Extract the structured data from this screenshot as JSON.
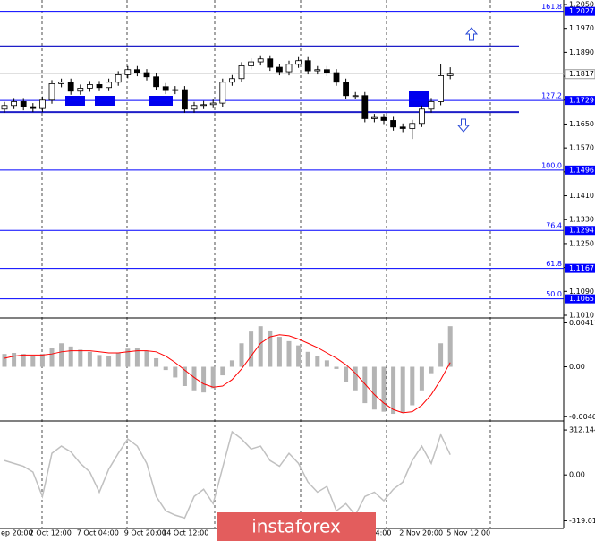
{
  "chart_data": [
    {
      "type": "candlestick",
      "categories": [
        "ep 20:00",
        null,
        null,
        "2 Oct 12:00",
        null,
        null,
        null,
        null,
        "7 Oct 04:00",
        null,
        null,
        null,
        null,
        "9 Oct 20:00",
        null,
        null,
        null,
        "14 Oct 12:00",
        null,
        null,
        null,
        null,
        null,
        null,
        null,
        null,
        null,
        null,
        null,
        null,
        null,
        null,
        null,
        null,
        null,
        null,
        null,
        null,
        null,
        "04:00",
        null,
        null,
        "2 Nov 20:00",
        null,
        null,
        null,
        null,
        "5 Nov 12:00"
      ],
      "open": [
        1.17,
        1.1712,
        1.1725,
        1.1708,
        1.1702,
        1.173,
        1.1785,
        1.179,
        1.176,
        1.177,
        1.1782,
        1.1772,
        1.179,
        1.1815,
        1.1832,
        1.1822,
        1.1808,
        1.1775,
        1.1762,
        1.1765,
        1.17,
        1.1712,
        1.1715,
        1.172,
        1.179,
        1.1802,
        1.1845,
        1.1858,
        1.1868,
        1.184,
        1.1825,
        1.185,
        1.1862,
        1.1828,
        1.1832,
        1.1822,
        1.179,
        1.1745,
        1.1745,
        1.1668,
        1.1672,
        1.1662,
        1.164,
        1.1635,
        1.1652,
        1.17,
        1.1725,
        1.1812
      ],
      "high": [
        1.1724,
        1.1737,
        1.1737,
        1.172,
        1.1742,
        1.1797,
        1.1802,
        1.1802,
        1.1782,
        1.1794,
        1.1794,
        1.1802,
        1.1827,
        1.1844,
        1.1844,
        1.1834,
        1.182,
        1.1787,
        1.1777,
        1.1777,
        1.1724,
        1.1727,
        1.1732,
        1.1802,
        1.1814,
        1.1857,
        1.187,
        1.188,
        1.188,
        1.1852,
        1.1862,
        1.1874,
        1.1874,
        1.1844,
        1.1844,
        1.1834,
        1.1802,
        1.1757,
        1.1757,
        1.1684,
        1.1684,
        1.1674,
        1.1652,
        1.1664,
        1.1712,
        1.1737,
        1.185,
        1.184
      ],
      "low": [
        1.1688,
        1.17,
        1.1696,
        1.169,
        1.169,
        1.1718,
        1.1773,
        1.1748,
        1.1748,
        1.1758,
        1.176,
        1.176,
        1.1778,
        1.1803,
        1.181,
        1.1796,
        1.1763,
        1.175,
        1.175,
        1.1688,
        1.1688,
        1.17,
        1.1703,
        1.1708,
        1.1778,
        1.179,
        1.1833,
        1.1846,
        1.1828,
        1.1813,
        1.1813,
        1.1838,
        1.1816,
        1.1816,
        1.181,
        1.1778,
        1.1733,
        1.1733,
        1.1656,
        1.1656,
        1.165,
        1.1628,
        1.1623,
        1.16,
        1.164,
        1.1688,
        1.1713,
        1.18
      ],
      "close": [
        1.1712,
        1.1725,
        1.1708,
        1.1702,
        1.173,
        1.1785,
        1.179,
        1.176,
        1.177,
        1.1782,
        1.1772,
        1.179,
        1.1815,
        1.1832,
        1.1822,
        1.1808,
        1.1775,
        1.1762,
        1.1765,
        1.17,
        1.1712,
        1.1715,
        1.172,
        1.179,
        1.1802,
        1.1845,
        1.1858,
        1.1868,
        1.184,
        1.1825,
        1.185,
        1.1862,
        1.1828,
        1.1832,
        1.1822,
        1.179,
        1.1745,
        1.1745,
        1.1668,
        1.1672,
        1.1662,
        1.164,
        1.1635,
        1.1652,
        1.17,
        1.1725,
        1.1812,
        1.1817
      ],
      "up_color": "#ffffff",
      "down_color": "#000000",
      "ylim": [
        1.101,
        1.205
      ],
      "yticks": [
        {
          "value": 1.205,
          "label": "1.2050"
        },
        {
          "value": 1.197,
          "label": "1.1970"
        },
        {
          "value": 1.189,
          "label": "1.1890"
        },
        {
          "value": 1.181,
          "label": "1.1810"
        },
        {
          "value": 1.173,
          "label": "1.1730"
        },
        {
          "value": 1.165,
          "label": "1.1650"
        },
        {
          "value": 1.157,
          "label": "1.1570"
        },
        {
          "value": 1.149,
          "label": "1.1490"
        },
        {
          "value": 1.141,
          "label": "1.1410"
        },
        {
          "value": 1.133,
          "label": "1.1330"
        },
        {
          "value": 1.125,
          "label": "1.1250"
        },
        {
          "value": 1.117,
          "label": "1.1170"
        },
        {
          "value": 1.109,
          "label": "1.1090"
        },
        {
          "value": 1.101,
          "label": "1.1010"
        }
      ],
      "channel_lines": [
        1.191,
        1.169
      ],
      "fib_levels": [
        {
          "label": "161.8",
          "value": 1.2027
        },
        {
          "label": "127.2",
          "value": 1.1729
        },
        {
          "label": "100.0",
          "value": 1.1496
        },
        {
          "label": "76.4",
          "value": 1.1294
        },
        {
          "label": "61.8",
          "value": 1.1167
        },
        {
          "label": "50.0",
          "value": 1.1065
        }
      ],
      "level_color": "#0000ff",
      "last_price": 1.1817,
      "watermark": "instaforex"
    },
    {
      "type": "macd",
      "histogram": [
        0.0012,
        0.0013,
        0.0012,
        0.001,
        0.0012,
        0.0018,
        0.0022,
        0.0019,
        0.0016,
        0.0014,
        0.0011,
        0.001,
        0.0013,
        0.0017,
        0.0018,
        0.0015,
        0.0008,
        -0.0003,
        -0.001,
        -0.0018,
        -0.0022,
        -0.0024,
        -0.002,
        -0.0008,
        0.0006,
        0.0022,
        0.0033,
        0.0038,
        0.0034,
        0.0028,
        0.0024,
        0.002,
        0.0014,
        0.001,
        0.0006,
        -0.0002,
        -0.0014,
        -0.0022,
        -0.0034,
        -0.004,
        -0.0042,
        -0.0044,
        -0.0043,
        -0.0036,
        -0.0022,
        -0.0006,
        0.0022,
        0.0038
      ],
      "signal": [
        0.0008,
        0.001,
        0.0011,
        0.0011,
        0.0011,
        0.0012,
        0.0014,
        0.0015,
        0.0015,
        0.0015,
        0.0014,
        0.0013,
        0.0013,
        0.0014,
        0.0015,
        0.0015,
        0.0014,
        0.001,
        0.0004,
        -0.0003,
        -0.001,
        -0.0016,
        -0.0019,
        -0.0018,
        -0.0012,
        -0.0002,
        0.001,
        0.0022,
        0.0028,
        0.003,
        0.0029,
        0.0026,
        0.0022,
        0.0018,
        0.0013,
        0.0008,
        0.0002,
        -0.0006,
        -0.0016,
        -0.0026,
        -0.0034,
        -0.004,
        -0.0043,
        -0.0042,
        -0.0036,
        -0.0026,
        -0.0012,
        0.0004
      ],
      "histogram_color": "#b4b4b4",
      "signal_color": "#ff0000",
      "ylim": [
        -0.0049,
        0.0044
      ],
      "yticks": [
        0.00411,
        {
          "value": 0,
          "label": "0.00"
        },
        -0.00467
      ]
    },
    {
      "type": "cci",
      "values": [
        100,
        80,
        60,
        20,
        -150,
        150,
        200,
        160,
        80,
        20,
        -120,
        40,
        150,
        250,
        200,
        80,
        -150,
        -250,
        -280,
        -300,
        -150,
        -100,
        -200,
        50,
        300,
        250,
        180,
        200,
        100,
        60,
        150,
        80,
        -50,
        -120,
        -80,
        -250,
        -200,
        -280,
        -150,
        -120,
        -180,
        -100,
        -50,
        100,
        200,
        80,
        280,
        140
      ],
      "color": "#c0c0c0",
      "ylim": [
        -360,
        350
      ],
      "yticks": [
        312.1442,
        {
          "value": 0,
          "label": "0.00"
        },
        -319.0117
      ]
    }
  ]
}
